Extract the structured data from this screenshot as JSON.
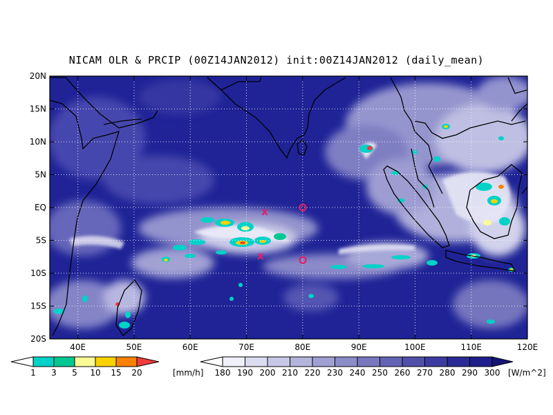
{
  "title": "NICAM OLR & PRCIP (00Z14JAN2012) init:00Z14JAN2012 (daily_mean)",
  "axes": {
    "lat_labels": [
      "20N",
      "15N",
      "10N",
      "5N",
      "EQ",
      "5S",
      "10S",
      "15S",
      "20S"
    ],
    "lon_labels": [
      "40E",
      "50E",
      "60E",
      "70E",
      "80E",
      "90E",
      "100E",
      "110E",
      "120E"
    ]
  },
  "colors": {
    "olr_background": "#1f2396",
    "precip": [
      "#00d2c8",
      "#00c890",
      "#fafa96",
      "#fad200",
      "#fa8200",
      "#f03c3c"
    ],
    "olr": [
      "#f0f0fa",
      "#dcdcf0",
      "#c8c8e6",
      "#b4b4dc",
      "#a0a0d2",
      "#8c8cc8",
      "#7878be",
      "#6464b4",
      "#5050aa",
      "#3c3ca0",
      "#2a2a96",
      "#1e1e8c"
    ]
  },
  "precip_colorbar": {
    "ticks": [
      "1",
      "3",
      "5",
      "10",
      "15",
      "20"
    ],
    "unit": "[mm/h]"
  },
  "olr_colorbar": {
    "ticks": [
      "180",
      "190",
      "200",
      "210",
      "220",
      "230",
      "240",
      "250",
      "260",
      "270",
      "280",
      "290",
      "300"
    ],
    "unit": "[W/m^2]"
  },
  "markers": {
    "cross": "x",
    "circle": "o"
  }
}
